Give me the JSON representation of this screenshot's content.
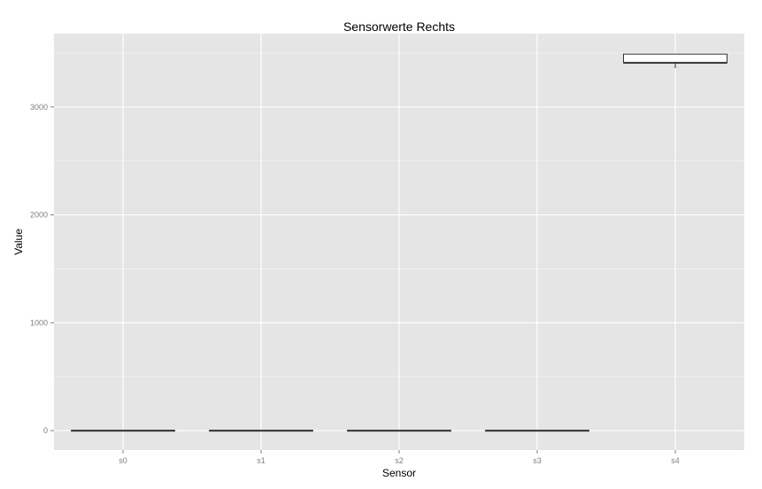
{
  "chart_data": {
    "type": "boxplot",
    "title": "Sensorwerte Rechts",
    "xlabel": "Sensor",
    "ylabel": "Value",
    "categories": [
      "s0",
      "s1",
      "s2",
      "s3",
      "s4"
    ],
    "yticks": [
      0,
      1000,
      2000,
      3000
    ],
    "ylim": [
      -180,
      3680
    ],
    "grid": true,
    "boxes": [
      {
        "category": "s0",
        "lower_whisker": 0,
        "q1": 0,
        "median": 0,
        "q3": 0,
        "upper_whisker": 0
      },
      {
        "category": "s1",
        "lower_whisker": 0,
        "q1": 0,
        "median": 0,
        "q3": 0,
        "upper_whisker": 0
      },
      {
        "category": "s2",
        "lower_whisker": 0,
        "q1": 0,
        "median": 0,
        "q3": 0,
        "upper_whisker": 0
      },
      {
        "category": "s3",
        "lower_whisker": 0,
        "q1": 0,
        "median": 0,
        "q3": 0,
        "upper_whisker": 0
      },
      {
        "category": "s4",
        "lower_whisker": 3360,
        "q1": 3410,
        "median": 3410,
        "q3": 3490,
        "upper_whisker": 3490
      }
    ],
    "colors": {
      "panel": "#e5e5e5",
      "grid_major": "#ffffff",
      "grid_minor": "#f2f2f2",
      "box_fill": "#ffffff",
      "box_stroke": "#333333"
    }
  }
}
